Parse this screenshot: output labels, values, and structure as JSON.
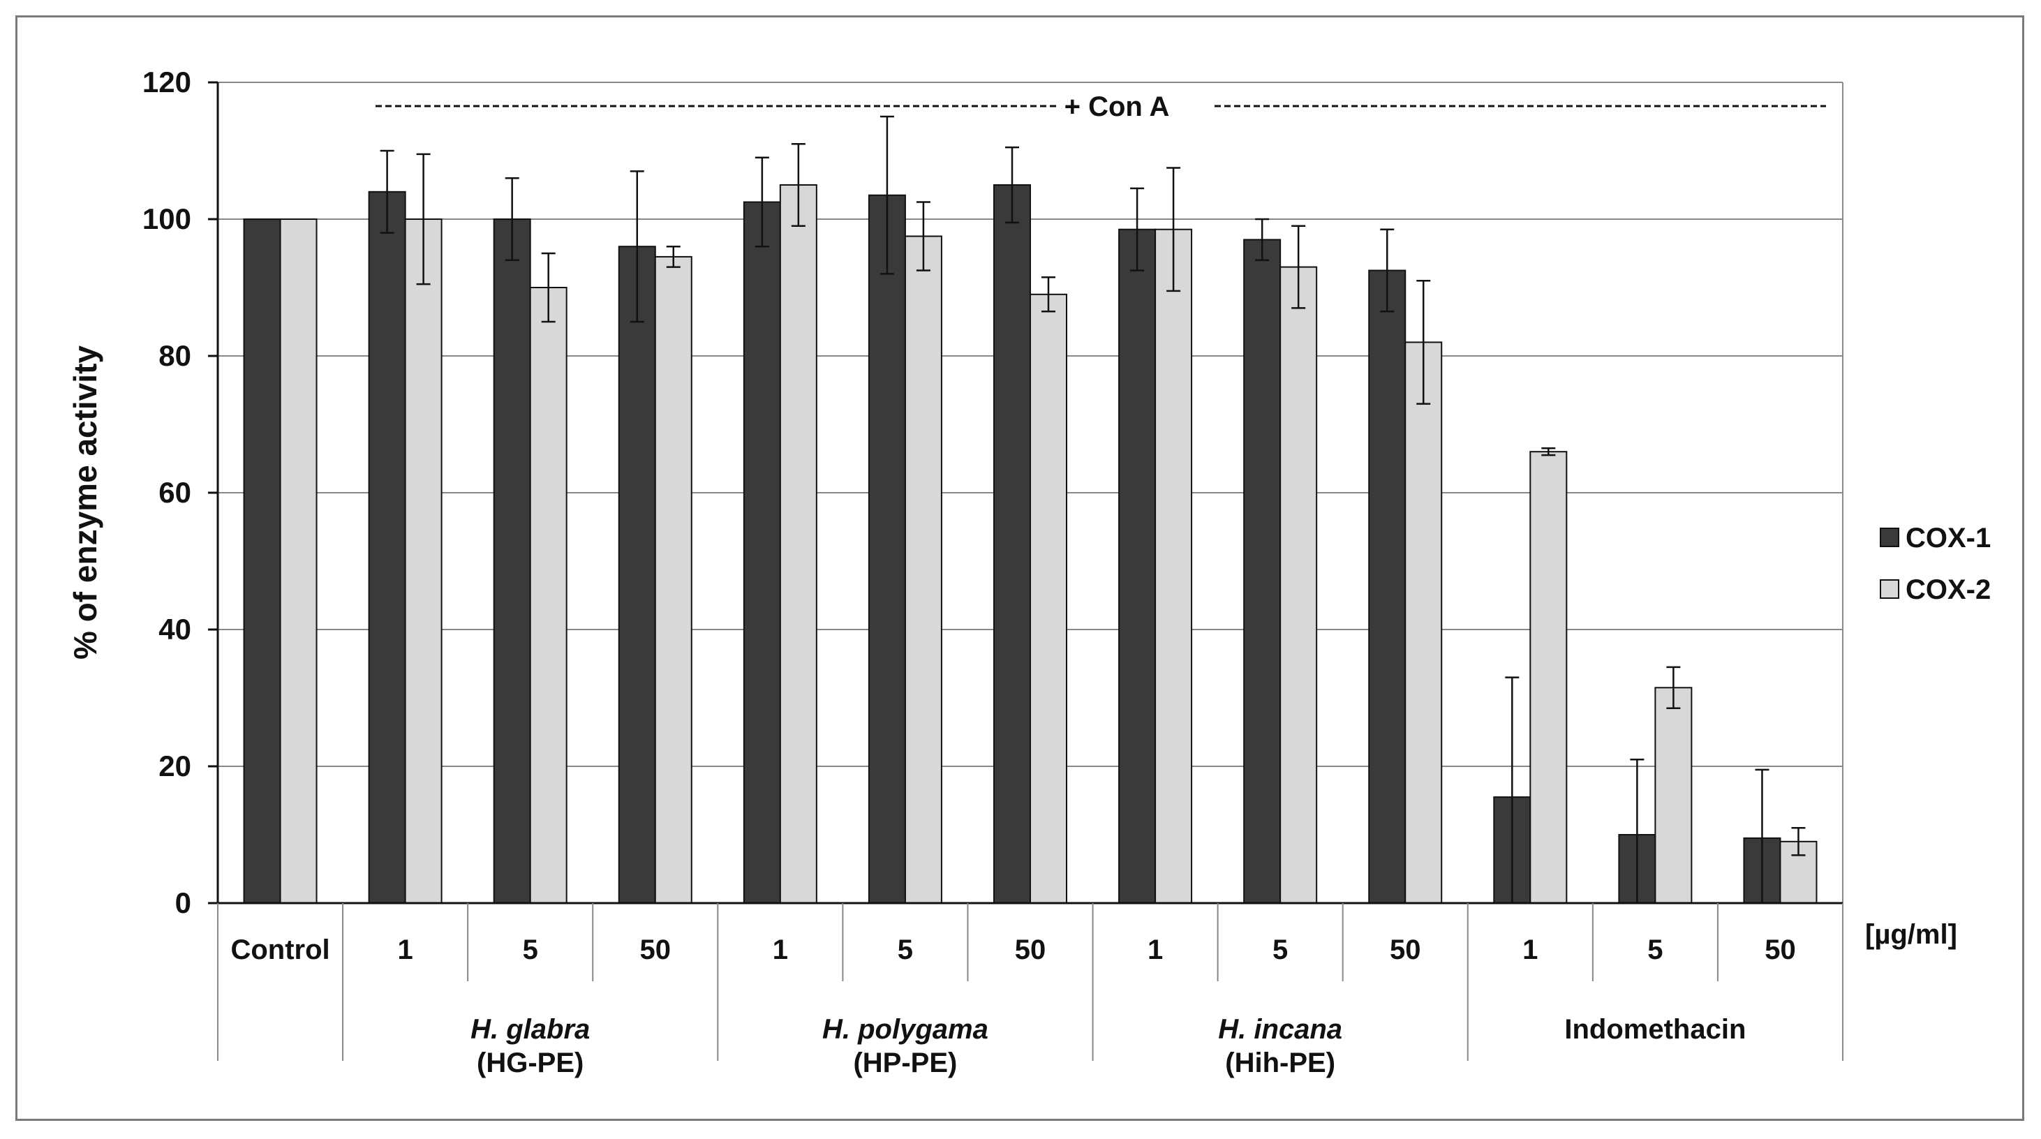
{
  "chart_data": {
    "type": "bar",
    "ylabel": "% of enzyme activity",
    "ylim": [
      0,
      120
    ],
    "yticks": [
      0,
      20,
      40,
      60,
      80,
      100,
      120
    ],
    "unit_label": "[µg/ml]",
    "annotation": "+ Con A",
    "grid": true,
    "legend_position": "right",
    "colors": {
      "COX-1": "#3a3a3a",
      "COX-2": "#d8d8d8"
    },
    "categories": [
      "Control",
      "1",
      "5",
      "50",
      "1",
      "5",
      "50",
      "1",
      "5",
      "50",
      "1",
      "5",
      "50"
    ],
    "groups": [
      {
        "name_line1": "",
        "name_line2": "",
        "italic": false,
        "start": 0,
        "end": 0
      },
      {
        "name_line1": "H. glabra",
        "name_line2": "(HG-PE)",
        "italic": true,
        "start": 1,
        "end": 3
      },
      {
        "name_line1": "H. polygama",
        "name_line2": "(HP-PE)",
        "italic": true,
        "start": 4,
        "end": 6
      },
      {
        "name_line1": "H. incana",
        "name_line2": "(Hih-PE)",
        "italic": true,
        "start": 7,
        "end": 9
      },
      {
        "name_line1": "Indomethacin",
        "name_line2": "",
        "italic": false,
        "start": 10,
        "end": 12
      }
    ],
    "series": [
      {
        "name": "COX-1",
        "values": [
          100,
          104,
          100,
          96,
          102.5,
          103.5,
          105,
          98.5,
          97,
          92.5,
          15.5,
          10,
          9.5
        ],
        "errors": [
          0,
          6,
          6,
          11,
          6.5,
          11.5,
          5.5,
          6,
          3,
          6,
          17.5,
          11,
          10
        ]
      },
      {
        "name": "COX-2",
        "values": [
          100,
          100,
          90,
          94.5,
          105,
          97.5,
          89,
          98.5,
          93,
          82,
          66,
          31.5,
          9
        ],
        "errors": [
          0,
          9.5,
          5,
          1.5,
          6,
          5,
          2.5,
          9,
          6,
          9,
          0.5,
          3,
          2
        ]
      }
    ]
  }
}
